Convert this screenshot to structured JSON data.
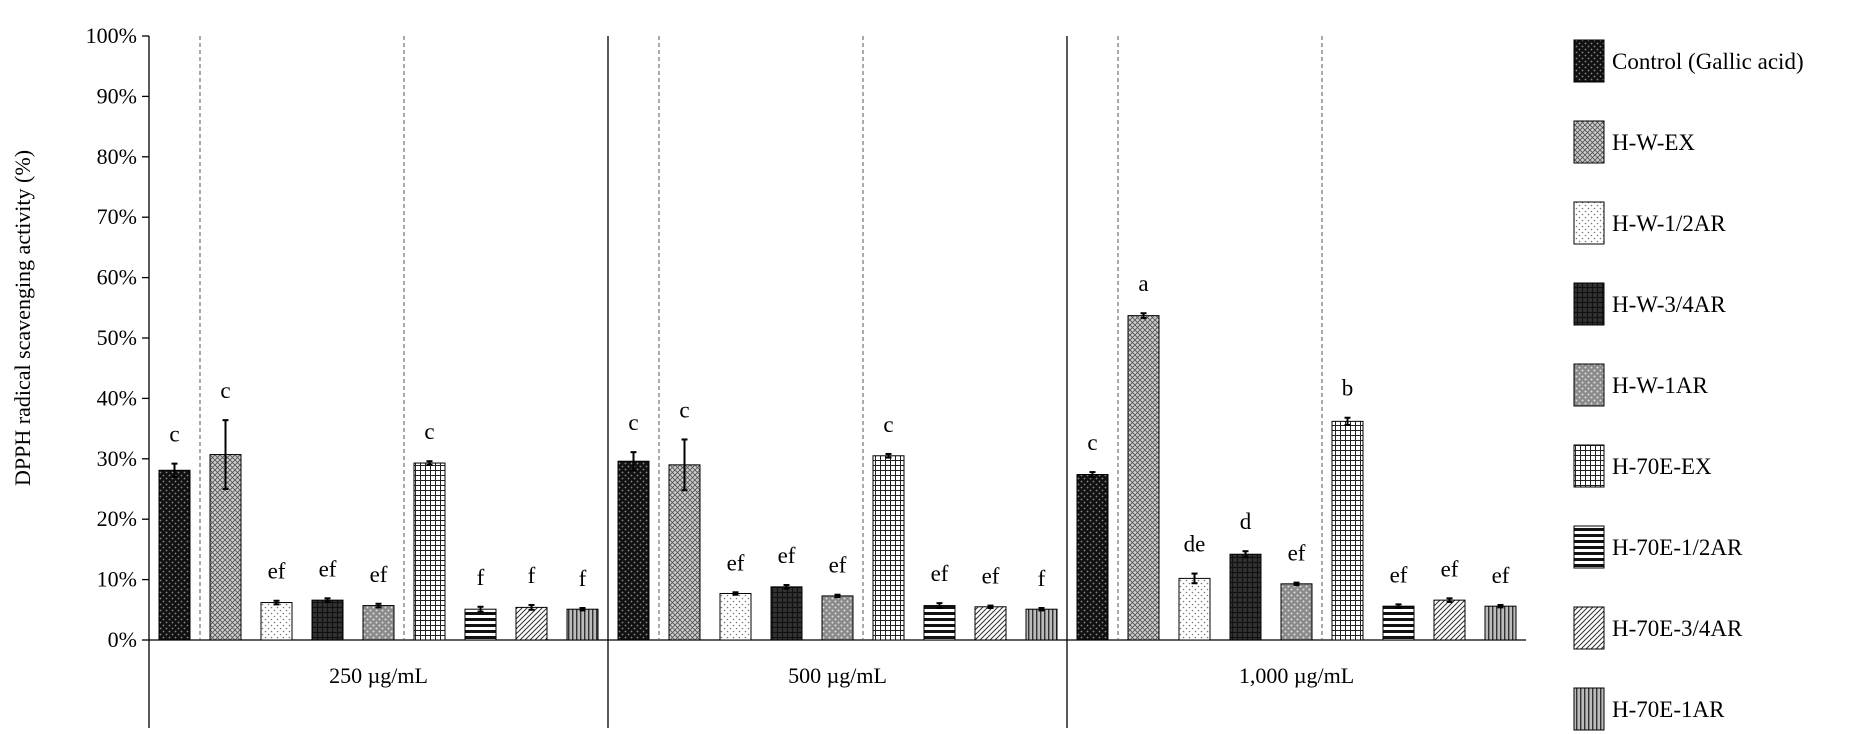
{
  "chart_data": {
    "type": "bar",
    "title": "",
    "ylabel": "DPPH radical scavenging activity (%)",
    "xlabel": "",
    "ylim": [
      0,
      100
    ],
    "yticks": [
      0,
      10,
      20,
      30,
      40,
      50,
      60,
      70,
      80,
      90,
      100
    ],
    "ytick_suffix": "%",
    "grid": false,
    "legend_position": "right",
    "groups": [
      "250 µg/mL",
      "500 µg/mL",
      "1,000 µg/mL"
    ],
    "series": [
      {
        "name": "Control (Gallic acid)",
        "pattern": "dots-dark",
        "values": [
          28.1,
          29.6,
          27.4
        ],
        "errors": [
          1.1,
          1.5,
          0.4
        ],
        "letters": [
          "c",
          "c",
          "c"
        ]
      },
      {
        "name": "H-W-EX",
        "pattern": "crosshatch",
        "values": [
          30.7,
          29.0,
          53.7
        ],
        "errors": [
          5.7,
          4.2,
          0.4
        ],
        "letters": [
          "c",
          "c",
          "a"
        ]
      },
      {
        "name": "H-W-1/2AR",
        "pattern": "dots-light",
        "values": [
          6.2,
          7.7,
          10.2
        ],
        "errors": [
          0.3,
          0.2,
          0.8
        ],
        "letters": [
          "ef",
          "ef",
          "de"
        ]
      },
      {
        "name": "H-W-3/4AR",
        "pattern": "dark-grid",
        "values": [
          6.6,
          8.8,
          14.2
        ],
        "errors": [
          0.3,
          0.3,
          0.5
        ],
        "letters": [
          "ef",
          "ef",
          "d"
        ]
      },
      {
        "name": "H-W-1AR",
        "pattern": "grey-dots",
        "values": [
          5.7,
          7.3,
          9.3
        ],
        "errors": [
          0.3,
          0.2,
          0.2
        ],
        "letters": [
          "ef",
          "ef",
          "ef"
        ]
      },
      {
        "name": "H-70E-EX",
        "pattern": "grid",
        "values": [
          29.3,
          30.5,
          36.2
        ],
        "errors": [
          0.3,
          0.3,
          0.6
        ],
        "letters": [
          "c",
          "c",
          "b"
        ]
      },
      {
        "name": "H-70E-1/2AR",
        "pattern": "horizontal",
        "values": [
          5.1,
          5.7,
          5.6
        ],
        "errors": [
          0.4,
          0.4,
          0.3
        ],
        "letters": [
          "f",
          "ef",
          "ef"
        ]
      },
      {
        "name": "H-70E-3/4AR",
        "pattern": "diagonal",
        "values": [
          5.4,
          5.5,
          6.6
        ],
        "errors": [
          0.4,
          0.2,
          0.3
        ],
        "letters": [
          "f",
          "ef",
          "ef"
        ]
      },
      {
        "name": "H-70E-1AR",
        "pattern": "vertical",
        "values": [
          5.1,
          5.1,
          5.6
        ],
        "errors": [
          0.2,
          0.2,
          0.2
        ],
        "letters": [
          "f",
          "f",
          "ef"
        ]
      }
    ],
    "colors": {
      "axis": "#000000",
      "divider": "#555555"
    }
  }
}
